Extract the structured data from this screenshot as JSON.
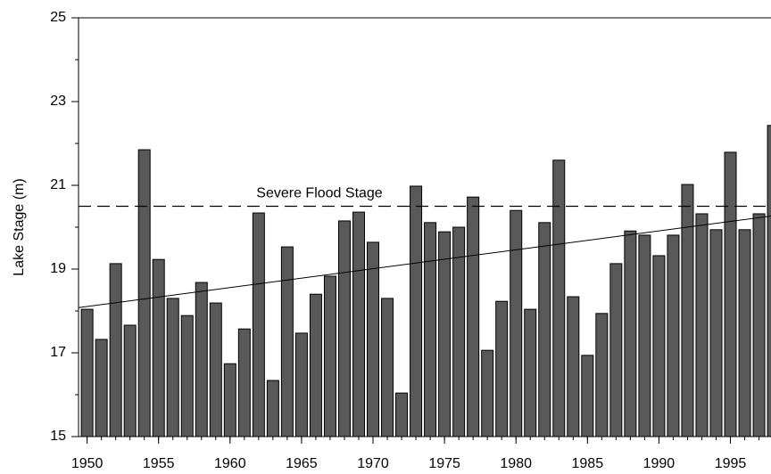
{
  "chart_data": {
    "type": "bar",
    "y_label": "Lake Stage (m)",
    "x": [
      1950,
      1951,
      1952,
      1953,
      1954,
      1955,
      1956,
      1957,
      1958,
      1959,
      1960,
      1961,
      1962,
      1963,
      1964,
      1965,
      1966,
      1967,
      1968,
      1969,
      1970,
      1971,
      1972,
      1973,
      1974,
      1975,
      1976,
      1977,
      1978,
      1979,
      1980,
      1981,
      1982,
      1983,
      1984,
      1985,
      1986,
      1987,
      1988,
      1989,
      1990,
      1991,
      1992,
      1993,
      1994,
      1995,
      1996,
      1997,
      1998
    ],
    "values": [
      18.04,
      17.32,
      19.13,
      17.66,
      21.85,
      19.23,
      18.3,
      17.89,
      18.68,
      18.19,
      16.74,
      17.57,
      20.34,
      16.34,
      19.53,
      17.47,
      18.4,
      18.83,
      20.15,
      20.36,
      19.64,
      18.3,
      16.04,
      20.98,
      20.11,
      19.89,
      20.0,
      20.72,
      17.06,
      18.23,
      20.4,
      18.04,
      20.11,
      21.6,
      18.34,
      16.94,
      17.94,
      19.13,
      19.91,
      19.81,
      19.32,
      19.81,
      21.02,
      20.32,
      19.94,
      21.79,
      19.94,
      20.32,
      22.43
    ],
    "color": "#595959",
    "xlim": [
      1949.4,
      1998.6
    ],
    "xticks": [
      1950,
      1955,
      1960,
      1965,
      1970,
      1975,
      1980,
      1985,
      1990,
      1995
    ],
    "ylim": [
      15,
      25
    ],
    "yticks": [
      15,
      17,
      19,
      21,
      23,
      25
    ],
    "trend_line": {
      "x": [
        1949.4,
        1998.6
      ],
      "values": [
        18.08,
        20.3
      ]
    },
    "flood_stage": {
      "label": "Severe Flood Stage",
      "value": 20.5
    }
  }
}
